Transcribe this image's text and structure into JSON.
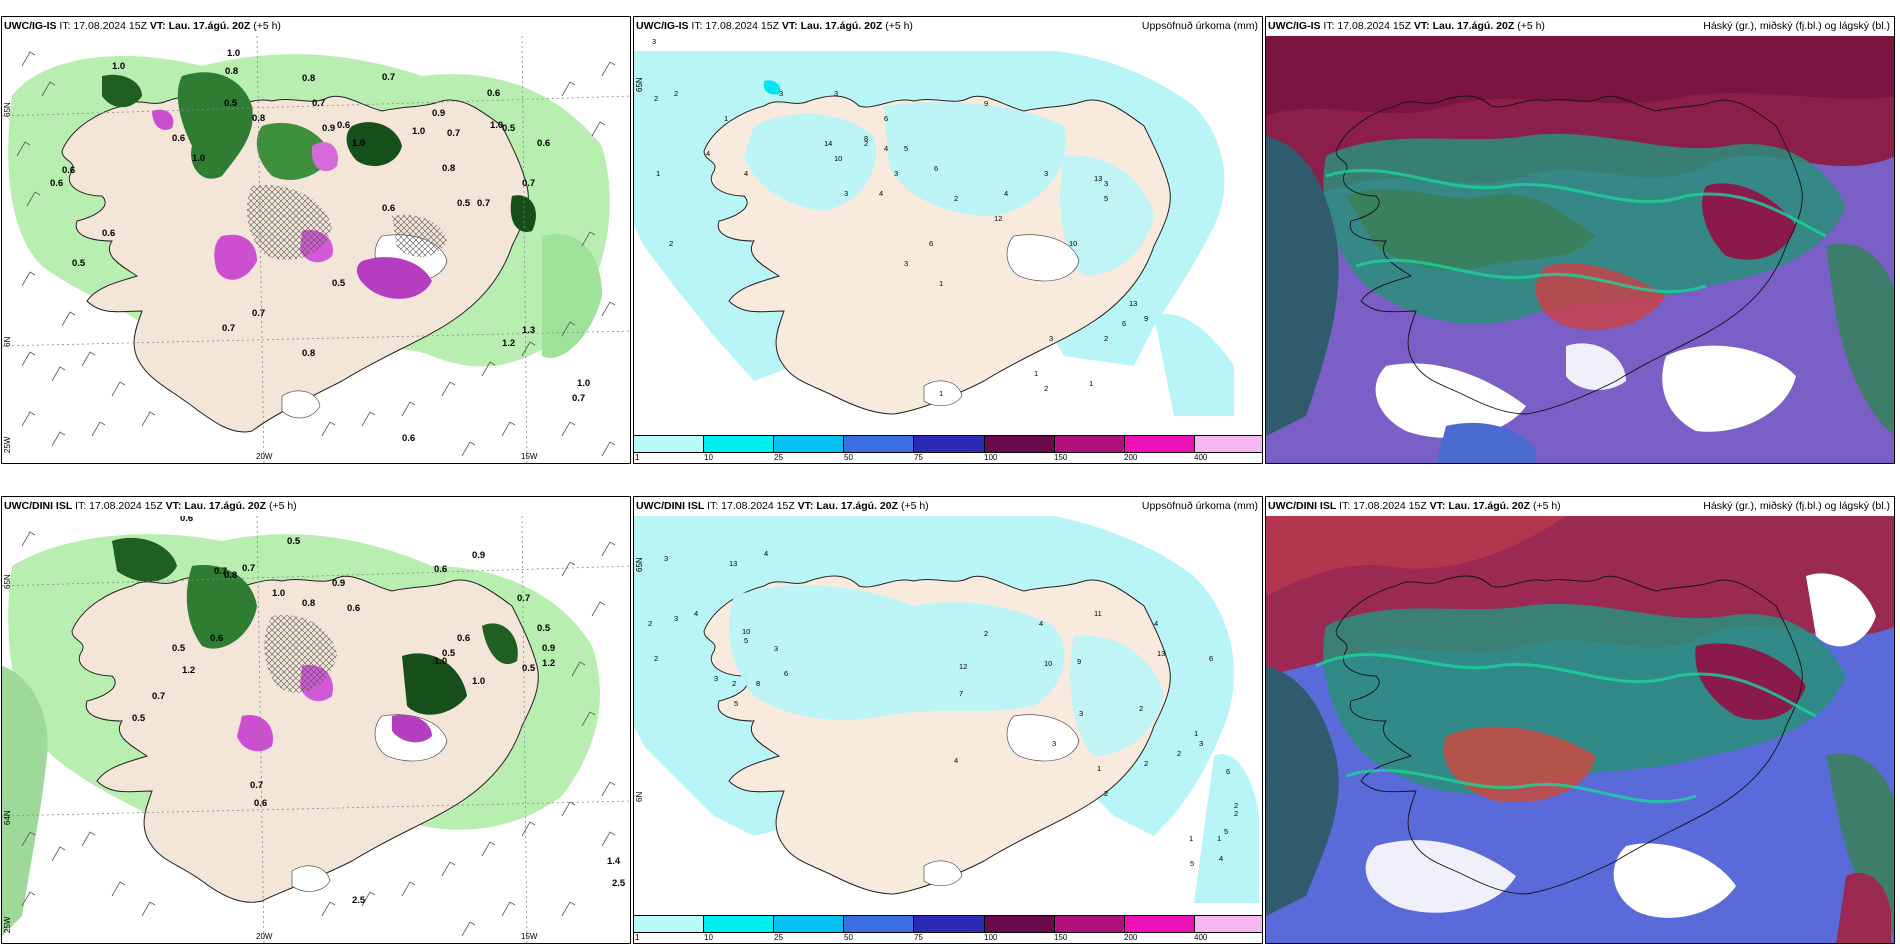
{
  "panels": {
    "ig_wind": {
      "model": "UWC/IG-IS",
      "run": " IT: 17.08.2024 15Z ",
      "vt_label": "VT: Lau. 17.ágú. 20Z",
      "lead": " (+5 h)"
    },
    "ig_precip": {
      "model": "UWC/IG-IS",
      "run": " IT: 17.08.2024 15Z ",
      "vt_label": "VT: Lau. 17.ágú. 20Z",
      "lead": " (+5 h)",
      "right": "Uppsöfnuð úrkoma (mm)"
    },
    "ig_cloud": {
      "model": "UWC/IG-IS",
      "run": " IT: 17.08.2024 15Z ",
      "vt_label": "VT: Lau. 17.ágú. 20Z",
      "lead": " (+5 h)",
      "right": "Háský (gr.), miðský (fj.bl.) og lágský (bl.)"
    },
    "dini_wind": {
      "model": "UWC/DINI ISL",
      "run": " IT: 17.08.2024 15Z ",
      "vt_label": "VT: Lau. 17.ágú. 20Z",
      "lead": " (+5 h)"
    },
    "dini_precip": {
      "model": "UWC/DINI ISL",
      "run": " IT: 17.08.2024 15Z ",
      "vt_label": "VT: Lau. 17.ágú. 20Z",
      "lead": " (+5 h)",
      "right": "Uppsöfnuð úrkoma (mm)"
    },
    "dini_cloud": {
      "model": "UWC/DINI ISL",
      "run": " IT: 17.08.2024 15Z ",
      "vt_label": "VT: Lau. 17.ágú. 20Z",
      "lead": " (+5 h)",
      "right": "Háský (gr.), miðský (fj.bl.) og lágský (bl.)"
    }
  },
  "axes": {
    "lat_top": "65N",
    "lat_mid": "64N",
    "lat_bot": "25W",
    "lat_mid_b": "6N",
    "lon_20w": "20W",
    "lon_15w": "15W",
    "precip_lat": "65N",
    "precip_lat2": "6N"
  },
  "colorbar": {
    "colors": [
      "#b7fbfb",
      "#00eeee",
      "#00c3ef",
      "#3a6fe6",
      "#2a2ab5",
      "#6a0a4d",
      "#b0107e",
      "#ee10b6",
      "#f7b6f1"
    ],
    "ticks": [
      "1",
      "10",
      "25",
      "50",
      "75",
      "100",
      "150",
      "200",
      "400"
    ]
  },
  "map_labels": {
    "ig_wind": [
      "0.6",
      "0.6",
      "0.7",
      "0.8",
      "1.0",
      "0.8",
      "0.7",
      "0.5",
      "0.6",
      "1.0",
      "0.8",
      "0.9",
      "1.0",
      "1.0",
      "0.9",
      "0.6",
      "0.5",
      "0.7",
      "1.0",
      "0.8",
      "0.7",
      "0.5",
      "0.6",
      "0.6",
      "0.5",
      "0.7",
      "0.5",
      "1.0",
      "0.6",
      "0.7",
      "0.8",
      "0.6",
      "1.2",
      "1.3",
      "0.7",
      "1.0",
      "0.7",
      "0.6"
    ],
    "ig_precip": [
      "3",
      "2",
      "2",
      "1",
      "4",
      "4",
      "1",
      "3",
      "3",
      "2",
      "14",
      "10",
      "6",
      "5",
      "6",
      "8",
      "4",
      "3",
      "4",
      "9",
      "2",
      "2",
      "3",
      "4",
      "12",
      "3",
      "13",
      "5",
      "10",
      "6",
      "3",
      "1",
      "13",
      "9",
      "6",
      "2",
      "3",
      "1",
      "1",
      "2",
      "1",
      "1",
      "3"
    ],
    "ig_cloud": [],
    "dini_wind": [
      "0.6",
      "0.5",
      "1.0",
      "0.8",
      "0.7",
      "1.2",
      "0.6",
      "0.5",
      "0.7",
      "0.9",
      "0.8",
      "0.6",
      "1.0",
      "0.5",
      "0.9",
      "0.6",
      "0.7",
      "0.5",
      "1.0",
      "1.2",
      "0.9",
      "0.6",
      "0.5",
      "0.7",
      "0.5",
      "0.7",
      "0.6",
      "2.5",
      "1.4",
      "2.5"
    ],
    "dini_precip": [
      "3",
      "2",
      "3",
      "2",
      "4",
      "13",
      "4",
      "3",
      "10",
      "5",
      "2",
      "3",
      "6",
      "8",
      "5",
      "12",
      "2",
      "4",
      "11",
      "9",
      "10",
      "13",
      "3",
      "2",
      "6",
      "7",
      "4",
      "3",
      "2",
      "1",
      "3",
      "2",
      "1",
      "2",
      "4",
      "5",
      "1",
      "2",
      "6",
      "2",
      "1",
      "4",
      "5"
    ],
    "dini_cloud": []
  }
}
